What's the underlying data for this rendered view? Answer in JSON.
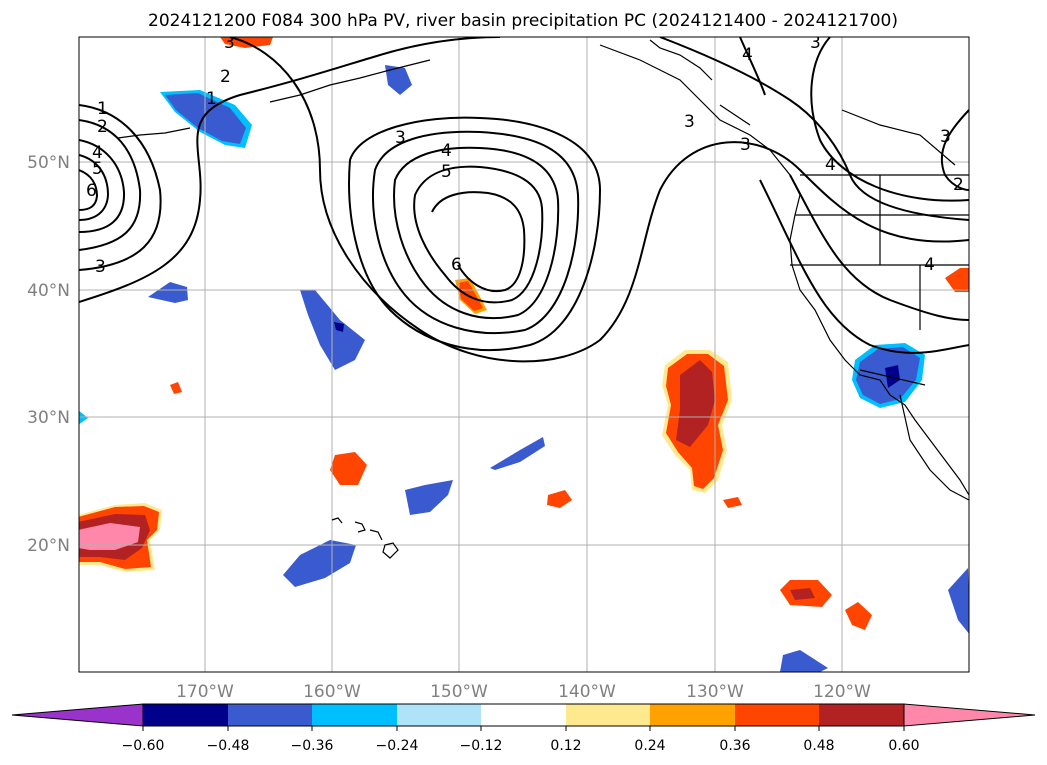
{
  "title": "2024121200 F084 300 hPa PV, river basin precipitation PC (2024121400 - 2024121700)",
  "lat_labels": [
    "50°N",
    "40°N",
    "30°N",
    "20°N"
  ],
  "lon_labels": [
    "170°W",
    "160°W",
    "150°W",
    "140°W",
    "130°W",
    "120°W"
  ],
  "colorbar": {
    "tick_labels": [
      "−0.60",
      "−0.48",
      "−0.36",
      "−0.24",
      "−0.12",
      "0.12",
      "0.24",
      "0.36",
      "0.48",
      "0.60"
    ],
    "colors": [
      "#9933cc",
      "#00008b",
      "#3a5bd0",
      "#00bfff",
      "#aee3f8",
      "#ffffff",
      "#ffe98f",
      "#ffa200",
      "#ff4500",
      "#b22222",
      "#ff88aa"
    ]
  },
  "contour_labels": [
    "1",
    "2",
    "3",
    "4",
    "5",
    "6",
    "1",
    "2",
    "3",
    "3",
    "4",
    "5",
    "6",
    "3",
    "4",
    "3",
    "2",
    "4",
    "3",
    "4",
    "3"
  ]
}
